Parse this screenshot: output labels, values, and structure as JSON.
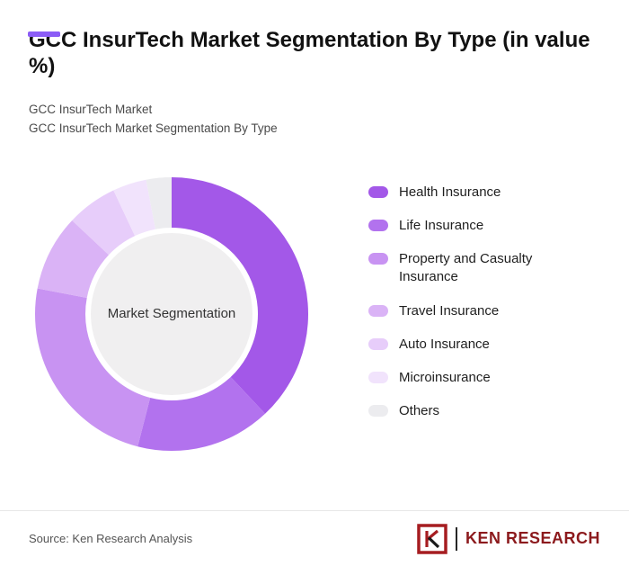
{
  "accent_color": "#8b5cf6",
  "header": {
    "title": "GCC InsurTech Market Segmentation By Type (in value %)",
    "subtitle_line1": "GCC InsurTech Market",
    "subtitle_line2": "GCC InsurTech Market Segmentation By Type"
  },
  "chart_data": {
    "type": "pie",
    "variant": "donut",
    "title": "GCC InsurTech Market Segmentation By Type (in value %)",
    "center_label": "Market Segmentation",
    "legend_position": "right",
    "units": "percent of total value",
    "start_angle_deg": 0,
    "direction": "clockwise",
    "series": [
      {
        "name": "Health Insurance",
        "value": 38,
        "color": "#a358e8"
      },
      {
        "name": "Life Insurance",
        "value": 16,
        "color": "#b272ee"
      },
      {
        "name": "Property and Casualty Insurance",
        "value": 24,
        "color": "#c893f2"
      },
      {
        "name": "Travel Insurance",
        "value": 9,
        "color": "#dab3f6"
      },
      {
        "name": "Auto Insurance",
        "value": 6,
        "color": "#e7cdfa"
      },
      {
        "name": "Microinsurance",
        "value": 4,
        "color": "#f1e3fc"
      },
      {
        "name": "Others",
        "value": 3,
        "color": "#ececef"
      }
    ],
    "center_fill": "#f0eff0"
  },
  "footer": {
    "source": "Source: Ken Research Analysis",
    "logo_text": "KEN RESEARCH"
  }
}
